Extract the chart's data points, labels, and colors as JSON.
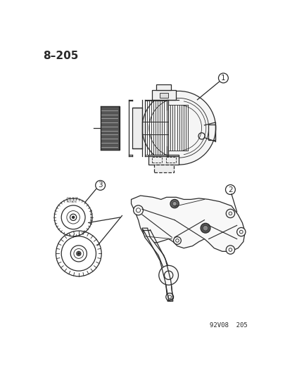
{
  "title": "8–205",
  "footer": "92V08  205",
  "bg_color": "#ffffff",
  "line_color": "#2a2a2a",
  "label1": "1",
  "label2": "2",
  "label3": "3",
  "title_fontsize": 11,
  "footer_fontsize": 6.5
}
